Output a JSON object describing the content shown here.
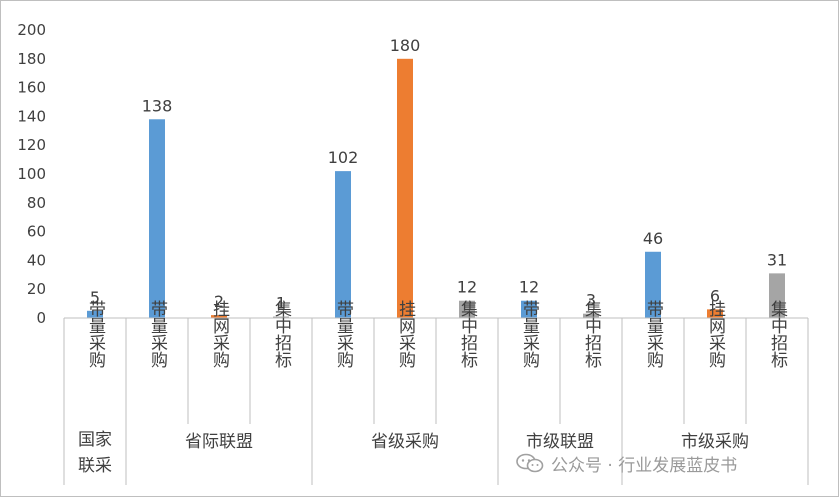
{
  "chart_data": {
    "type": "bar",
    "ylim": [
      0,
      200
    ],
    "yticks": [
      0,
      20,
      40,
      60,
      80,
      100,
      120,
      140,
      160,
      180,
      200
    ],
    "grid": false,
    "colors": {
      "带量采购": "#5b9bd5",
      "挂网采购": "#ed7d31",
      "集中招标": "#a5a5a5"
    },
    "groups": [
      {
        "name": "国家\n联采",
        "bars": [
          {
            "category": "带量采购",
            "value": 5
          }
        ]
      },
      {
        "name": "省际联盟",
        "bars": [
          {
            "category": "带量采购",
            "value": 138
          },
          {
            "category": "挂网采购",
            "value": 2
          },
          {
            "category": "集中招标",
            "value": 1
          }
        ]
      },
      {
        "name": "省级采购",
        "bars": [
          {
            "category": "带量采购",
            "value": 102
          },
          {
            "category": "挂网采购",
            "value": 180
          },
          {
            "category": "集中招标",
            "value": 12
          }
        ]
      },
      {
        "name": "市级联盟",
        "bars": [
          {
            "category": "带量采购",
            "value": 12
          },
          {
            "category": "集中招标",
            "value": 3
          }
        ]
      },
      {
        "name": "市级采购",
        "bars": [
          {
            "category": "带量采购",
            "value": 46
          },
          {
            "category": "挂网采购",
            "value": 6
          },
          {
            "category": "集中招标",
            "value": 31
          }
        ]
      }
    ]
  },
  "watermark": {
    "text": "公众号 · 行业发展蓝皮书",
    "icon": "wechat-icon"
  }
}
